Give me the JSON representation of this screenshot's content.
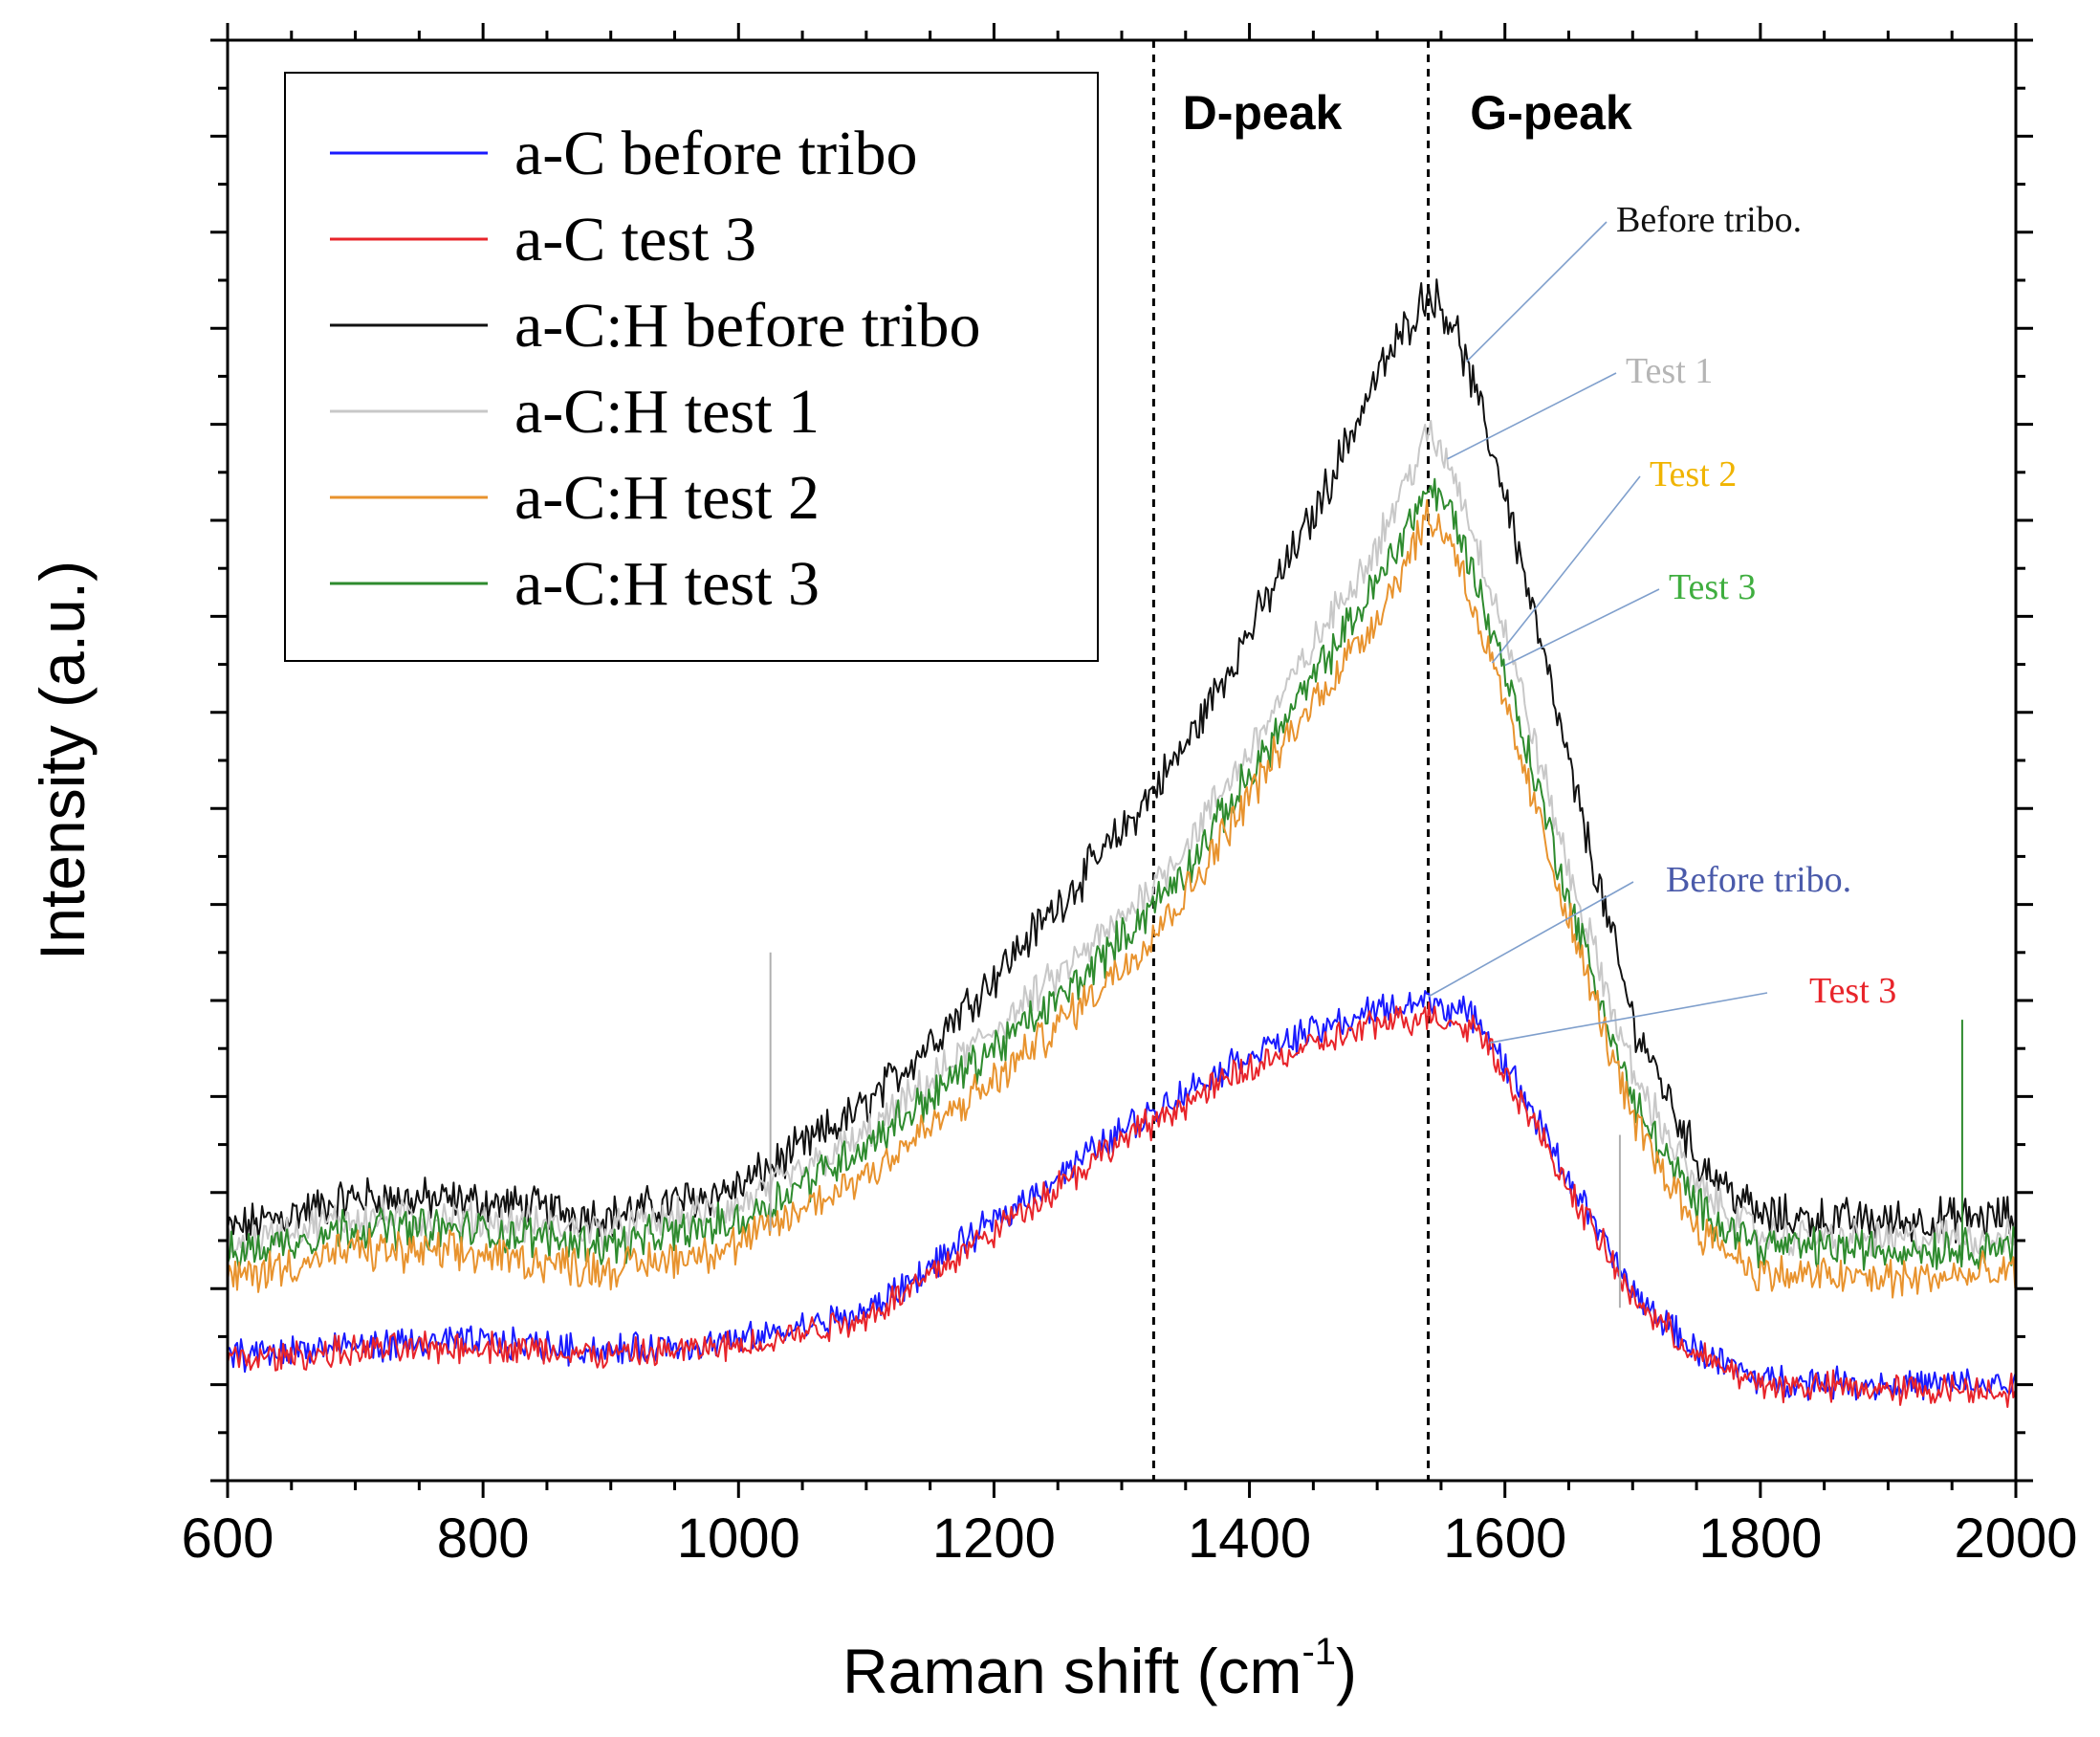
{
  "chart_data": {
    "type": "line",
    "title": "",
    "xlabel": "Raman shift (cm",
    "xlabel_sup": "-1",
    "xlabel_close": ")",
    "ylabel": "Intensity (a.u.)",
    "xlim": [
      600,
      2000
    ],
    "ylim": [
      0,
      15
    ],
    "x_ticks": [
      "600",
      "800",
      "1000",
      "1200",
      "1400",
      "1600",
      "1800",
      "2000"
    ],
    "y_tick_labels_shown": false,
    "reference_lines": [
      {
        "name": "D-peak",
        "label": "D-peak",
        "x": 1325
      },
      {
        "name": "G-peak",
        "label": "G-peak",
        "x": 1540
      }
    ],
    "legend": {
      "placement": "top-left",
      "entries": [
        {
          "label": "a-C before tribo",
          "color": "#1a1aff"
        },
        {
          "label": "a-C test 3",
          "color": "#e8242a"
        },
        {
          "label": "a-C:H before tribo",
          "color": "#111111"
        },
        {
          "label": "a-C:H test 1",
          "color": "#c8c8c8"
        },
        {
          "label": "a-C:H test 2",
          "color": "#e8932e"
        },
        {
          "label": "a-C:H test 3",
          "color": "#2e8b2e"
        }
      ]
    },
    "series": [
      {
        "name": "a-C before tribo",
        "color": "#1a1aff",
        "x": [
          600,
          700,
          800,
          900,
          1000,
          1100,
          1200,
          1300,
          1400,
          1500,
          1540,
          1580,
          1600,
          1650,
          1700,
          1750,
          1800,
          1900,
          2000
        ],
        "values": [
          1.3,
          1.4,
          1.45,
          1.35,
          1.45,
          1.75,
          2.7,
          3.65,
          4.45,
          4.9,
          5.0,
          4.8,
          4.35,
          3.15,
          1.95,
          1.35,
          1.05,
          1.0,
          1.0
        ]
      },
      {
        "name": "a-C test 3",
        "color": "#e8242a",
        "x": [
          600,
          700,
          800,
          900,
          1000,
          1100,
          1200,
          1300,
          1400,
          1500,
          1540,
          1580,
          1600,
          1650,
          1700,
          1750,
          1800,
          1900,
          2000
        ],
        "values": [
          1.25,
          1.35,
          1.4,
          1.3,
          1.4,
          1.7,
          2.6,
          3.55,
          4.3,
          4.75,
          4.85,
          4.7,
          4.25,
          3.05,
          1.9,
          1.3,
          1.0,
          0.95,
          0.95
        ]
      },
      {
        "name": "a-C:H before tribo",
        "color": "#111111",
        "x": [
          600,
          700,
          800,
          900,
          1000,
          1100,
          1200,
          1250,
          1300,
          1350,
          1400,
          1450,
          1500,
          1540,
          1560,
          1600,
          1650,
          1700,
          1750,
          1800,
          1900,
          2000
        ],
        "values": [
          2.6,
          2.95,
          2.9,
          2.75,
          3.05,
          3.9,
          5.25,
          6.0,
          6.75,
          7.65,
          8.85,
          10.05,
          11.5,
          12.4,
          12.05,
          10.3,
          7.45,
          4.8,
          3.35,
          2.75,
          2.7,
          2.75
        ]
      },
      {
        "name": "a-C:H test 1",
        "color": "#c8c8c8",
        "x": [
          600,
          700,
          800,
          900,
          1000,
          1100,
          1200,
          1250,
          1300,
          1350,
          1400,
          1450,
          1500,
          1540,
          1560,
          1600,
          1650,
          1700,
          1750,
          1800,
          1900,
          2000
        ],
        "values": [
          2.45,
          2.75,
          2.7,
          2.6,
          2.85,
          3.6,
          4.7,
          5.25,
          5.85,
          6.6,
          7.6,
          8.7,
          9.75,
          10.9,
          10.5,
          8.85,
          6.35,
          4.25,
          3.05,
          2.55,
          2.5,
          2.55
        ]
      },
      {
        "name": "a-C:H test 2",
        "color": "#e8932e",
        "x": [
          600,
          700,
          800,
          900,
          1000,
          1100,
          1200,
          1250,
          1300,
          1350,
          1400,
          1450,
          1500,
          1540,
          1560,
          1600,
          1650,
          1700,
          1750,
          1800,
          1900,
          2000
        ],
        "values": [
          2.1,
          2.4,
          2.35,
          2.2,
          2.45,
          3.2,
          4.15,
          4.75,
          5.35,
          6.1,
          7.15,
          8.1,
          9.0,
          10.05,
          9.75,
          8.05,
          5.85,
          3.75,
          2.65,
          2.15,
          2.1,
          2.15
        ]
      },
      {
        "name": "a-C:H test 3",
        "color": "#2e8b2e",
        "x": [
          600,
          700,
          800,
          900,
          1000,
          1100,
          1200,
          1250,
          1300,
          1350,
          1400,
          1450,
          1500,
          1540,
          1560,
          1600,
          1650,
          1700,
          1750,
          1800,
          1900,
          2000
        ],
        "values": [
          2.35,
          2.65,
          2.6,
          2.45,
          2.7,
          3.5,
          4.5,
          5.0,
          5.65,
          6.35,
          7.35,
          8.35,
          9.35,
          10.35,
          10.05,
          8.45,
          6.05,
          3.95,
          2.85,
          2.45,
          2.4,
          2.45
        ]
      }
    ],
    "annotations": [
      {
        "text": "Before tribo.",
        "color": "#111111",
        "points_to": "a-C:H before tribo"
      },
      {
        "text": "Test 1",
        "color": "#b5b5b5",
        "points_to": "a-C:H test 1"
      },
      {
        "text": "Test 2",
        "color": "#f0b400",
        "points_to": "a-C:H test 2"
      },
      {
        "text": "Test 3",
        "color": "#3fae3f",
        "points_to": "a-C:H test 3"
      },
      {
        "text": "Before tribo.",
        "color": "#4a5aaa",
        "points_to": "a-C before tribo"
      },
      {
        "text": "Test 3",
        "color": "#e8242a",
        "points_to": "a-C test 3"
      }
    ]
  }
}
